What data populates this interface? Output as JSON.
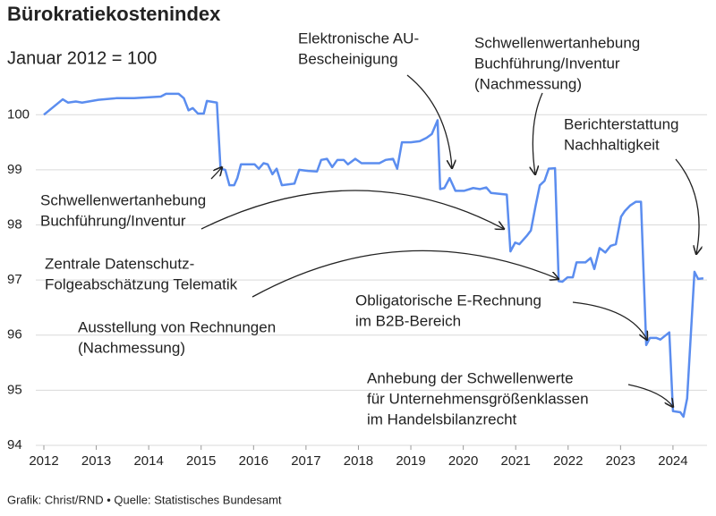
{
  "chart_data": {
    "type": "line",
    "title": "Bürokratiekostenindex",
    "subtitle": "Januar 2012 = 100",
    "source": "Grafik: Christ/RND • Quelle: Statistisches Bundesamt",
    "xlim": [
      2012,
      2024.65
    ],
    "xticks": [
      2012,
      2013,
      2014,
      2015,
      2016,
      2017,
      2018,
      2019,
      2020,
      2021,
      2022,
      2023,
      2024
    ],
    "ylim": [
      94,
      100.8
    ],
    "yticks": [
      94,
      95,
      96,
      97,
      98,
      99,
      100
    ],
    "grid": true,
    "series": [
      {
        "color": "#5b8def",
        "x": [
          2012.0,
          2012.36,
          2012.46,
          2012.61,
          2012.73,
          2013.04,
          2013.38,
          2013.72,
          2014.23,
          2014.33,
          2014.57,
          2014.67,
          2014.76,
          2014.84,
          2014.94,
          2015.05,
          2015.11,
          2015.3,
          2015.37,
          2015.46,
          2015.54,
          2015.63,
          2015.69,
          2015.76,
          2016.02,
          2016.1,
          2016.19,
          2016.27,
          2016.36,
          2016.44,
          2016.54,
          2016.78,
          2016.87,
          2017.04,
          2017.21,
          2017.29,
          2017.4,
          2017.5,
          2017.6,
          2017.72,
          2017.8,
          2017.94,
          2018.06,
          2018.23,
          2018.4,
          2018.52,
          2018.66,
          2018.74,
          2018.83,
          2019.0,
          2019.17,
          2019.3,
          2019.4,
          2019.51,
          2019.56,
          2019.64,
          2019.74,
          2019.85,
          2020.02,
          2020.19,
          2020.32,
          2020.44,
          2020.53,
          2020.83,
          2020.9,
          2020.99,
          2021.07,
          2021.21,
          2021.29,
          2021.38,
          2021.46,
          2021.55,
          2021.63,
          2021.75,
          2021.82,
          2021.89,
          2021.99,
          2022.09,
          2022.16,
          2022.33,
          2022.43,
          2022.5,
          2022.6,
          2022.71,
          2022.81,
          2022.91,
          2023.01,
          2023.08,
          2023.18,
          2023.29,
          2023.39,
          2023.49,
          2023.56,
          2023.68,
          2023.76,
          2023.93,
          2024.0,
          2024.14,
          2024.2,
          2024.27,
          2024.41,
          2024.48,
          2024.58
        ],
        "values": [
          100.0,
          100.28,
          100.22,
          100.24,
          100.22,
          100.27,
          100.3,
          100.3,
          100.33,
          100.38,
          100.38,
          100.3,
          100.08,
          100.12,
          100.02,
          100.02,
          100.25,
          100.22,
          99.02,
          99.0,
          98.72,
          98.72,
          98.85,
          99.1,
          99.1,
          99.02,
          99.12,
          99.1,
          98.92,
          99.02,
          98.72,
          98.75,
          99.0,
          98.98,
          98.97,
          99.18,
          99.2,
          99.05,
          99.18,
          99.18,
          99.1,
          99.2,
          99.12,
          99.12,
          99.12,
          99.18,
          99.2,
          99.02,
          99.5,
          99.5,
          99.52,
          99.58,
          99.65,
          99.9,
          98.65,
          98.67,
          98.85,
          98.62,
          98.62,
          98.67,
          98.65,
          98.68,
          98.58,
          98.55,
          97.52,
          97.68,
          97.65,
          97.8,
          97.9,
          98.35,
          98.72,
          98.8,
          99.02,
          99.03,
          96.98,
          96.97,
          97.05,
          97.05,
          97.32,
          97.32,
          97.4,
          97.2,
          97.58,
          97.5,
          97.62,
          97.65,
          98.15,
          98.25,
          98.35,
          98.42,
          98.42,
          95.82,
          95.95,
          95.95,
          95.92,
          96.05,
          94.62,
          94.6,
          94.52,
          94.85,
          97.15,
          97.02,
          97.03
        ]
      }
    ],
    "annotations": [
      [
        "Schwellenwertanhebung",
        "Buchführung/Inventur"
      ],
      [
        "Elektronische AU-",
        "Bescheinigung"
      ],
      [
        "Schwellenwertanhebung",
        "Buchführung/Inventur",
        "(Nachmessung)"
      ],
      [
        "Berichterstattung",
        "Nachhaltigkeit"
      ],
      [
        "Zentrale Datenschutz-",
        "Folgeabschätzung Telematik"
      ],
      [
        "Ausstellung von Rechnungen",
        "(Nachmessung)"
      ],
      [
        "Obligatorische E-Rechnung",
        "im B2B-Bereich"
      ],
      [
        "Anhebung der Schwellenwerte",
        "für Unternehmensgrößenklassen",
        "im Handelsbilanzrecht"
      ]
    ]
  }
}
